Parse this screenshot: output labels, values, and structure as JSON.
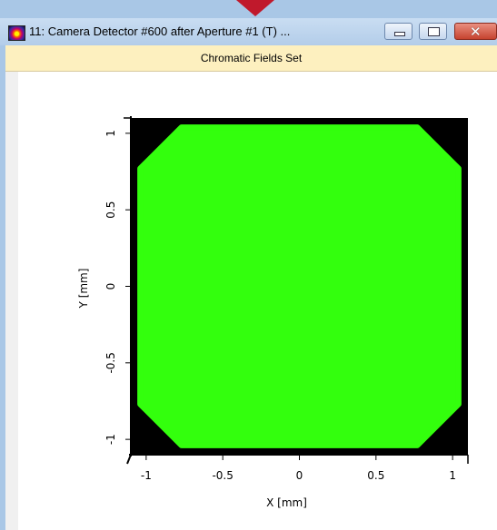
{
  "window": {
    "title": "11: Camera Detector #600 after Aperture #1 (T) ...",
    "minimize_icon": "minimize-icon",
    "maximize_icon": "maximize-icon",
    "close_icon": "close-icon",
    "close_glyph": "✕"
  },
  "header": {
    "text": "Chromatic Fields Set"
  },
  "colors": {
    "field": "#33ff0d",
    "background": "#000000",
    "header": "#fdf0bf",
    "marker": "#c0192c"
  },
  "chart_data": {
    "type": "heatmap",
    "xlabel": "X [mm]",
    "ylabel": "Y [mm]",
    "xlim": [
      -1.1,
      1.1
    ],
    "ylim": [
      -1.1,
      1.1
    ],
    "x_ticks": [
      -1,
      -0.5,
      0,
      0.5,
      1
    ],
    "x_tick_labels": [
      "-1",
      "-0.5",
      "0",
      "0.5",
      "1"
    ],
    "y_ticks": [
      1,
      0.5,
      0,
      -0.5,
      -1
    ],
    "y_tick_labels": [
      "1",
      "0.5",
      "0",
      "-0.5",
      "-1"
    ],
    "field_shape": "square with chamfered corners",
    "field_extent": [
      -1.04,
      1.04
    ],
    "chamfer": 0.27,
    "grid": false
  }
}
